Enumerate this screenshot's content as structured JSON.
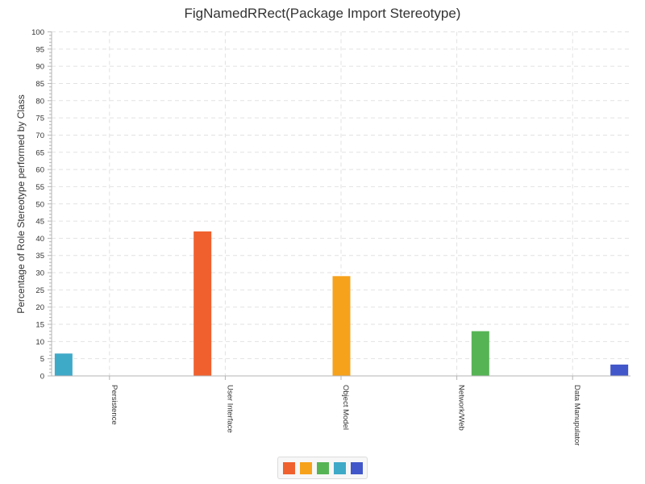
{
  "chart_data": {
    "type": "bar",
    "title": "FigNamedRRect(Package Import Stereotype)",
    "xlabel": "",
    "ylabel": "Percentage of Role Stereotype performed by Class",
    "ylim": [
      0,
      100
    ],
    "y_major_step": 5,
    "y_minor_step": 1,
    "grid": true,
    "legend_position": "bottom-center",
    "categories": [
      "Persistence",
      "User Interface",
      "Object Model",
      "Network/Web",
      "Data Manupulator"
    ],
    "series": [
      {
        "color": "#3fa9c8",
        "values": [
          6.5,
          0,
          0,
          0,
          0
        ]
      },
      {
        "color": "#f0602e",
        "values": [
          0,
          42,
          0,
          0,
          0
        ]
      },
      {
        "color": "#f7a21b",
        "values": [
          0,
          0,
          29,
          0,
          0
        ]
      },
      {
        "color": "#56b455",
        "values": [
          0,
          0,
          0,
          13,
          0
        ]
      },
      {
        "color": "#4257c9",
        "values": [
          0,
          0,
          0,
          0,
          3.3
        ]
      }
    ],
    "legend": [
      {
        "color": "#f0602e"
      },
      {
        "color": "#f7a21b"
      },
      {
        "color": "#56b455"
      },
      {
        "color": "#3fa9c8"
      },
      {
        "color": "#4257c9"
      }
    ]
  }
}
